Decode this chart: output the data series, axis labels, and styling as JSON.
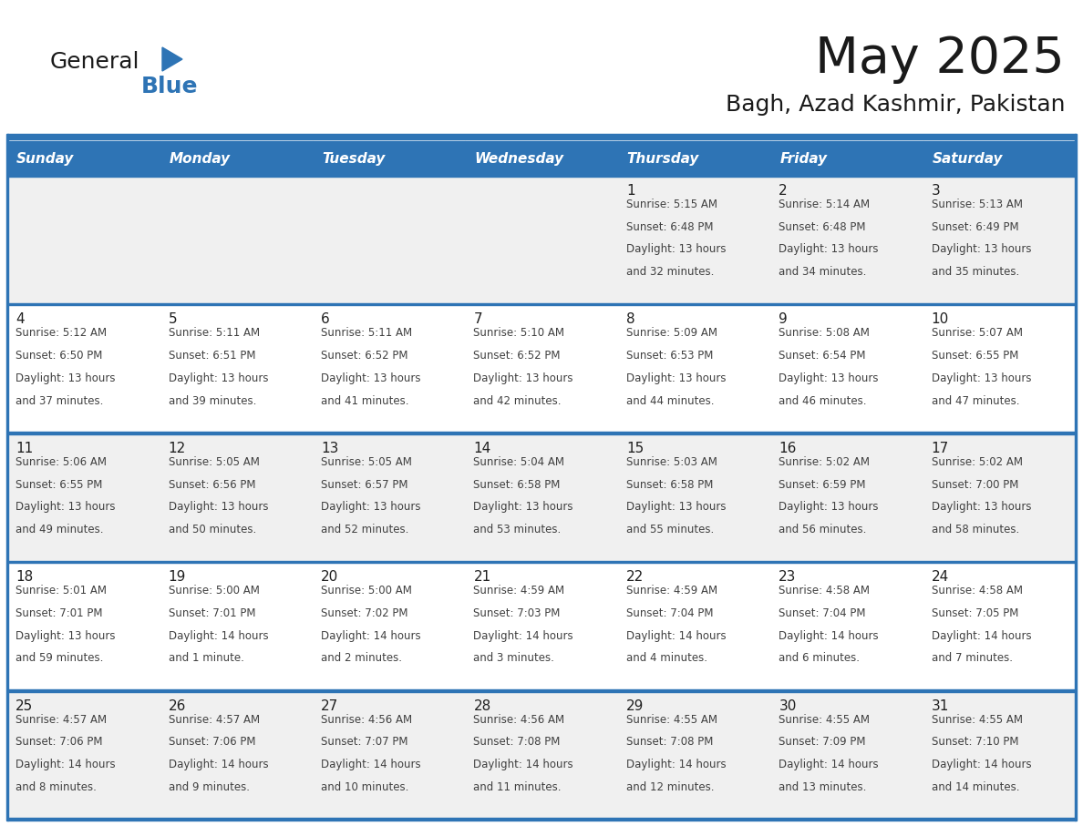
{
  "title": "May 2025",
  "subtitle": "Bagh, Azad Kashmir, Pakistan",
  "days_of_week": [
    "Sunday",
    "Monday",
    "Tuesday",
    "Wednesday",
    "Thursday",
    "Friday",
    "Saturday"
  ],
  "header_bg": "#2E74B5",
  "header_text_color": "#FFFFFF",
  "row_bg_odd": "#F0F0F0",
  "row_bg_even": "#FFFFFF",
  "border_color": "#2E74B5",
  "day_number_color": "#1F1F1F",
  "cell_text_color": "#404040",
  "logo_general_color": "#1A1A1A",
  "logo_blue_color": "#2E74B5",
  "title_color": "#1A1A1A",
  "subtitle_color": "#1A1A1A",
  "calendar": [
    [
      null,
      null,
      null,
      null,
      {
        "day": 1,
        "sunrise": "5:15 AM",
        "sunset": "6:48 PM",
        "daylight": "13 hours and 32 minutes"
      },
      {
        "day": 2,
        "sunrise": "5:14 AM",
        "sunset": "6:48 PM",
        "daylight": "13 hours and 34 minutes"
      },
      {
        "day": 3,
        "sunrise": "5:13 AM",
        "sunset": "6:49 PM",
        "daylight": "13 hours and 35 minutes"
      }
    ],
    [
      {
        "day": 4,
        "sunrise": "5:12 AM",
        "sunset": "6:50 PM",
        "daylight": "13 hours and 37 minutes"
      },
      {
        "day": 5,
        "sunrise": "5:11 AM",
        "sunset": "6:51 PM",
        "daylight": "13 hours and 39 minutes"
      },
      {
        "day": 6,
        "sunrise": "5:11 AM",
        "sunset": "6:52 PM",
        "daylight": "13 hours and 41 minutes"
      },
      {
        "day": 7,
        "sunrise": "5:10 AM",
        "sunset": "6:52 PM",
        "daylight": "13 hours and 42 minutes"
      },
      {
        "day": 8,
        "sunrise": "5:09 AM",
        "sunset": "6:53 PM",
        "daylight": "13 hours and 44 minutes"
      },
      {
        "day": 9,
        "sunrise": "5:08 AM",
        "sunset": "6:54 PM",
        "daylight": "13 hours and 46 minutes"
      },
      {
        "day": 10,
        "sunrise": "5:07 AM",
        "sunset": "6:55 PM",
        "daylight": "13 hours and 47 minutes"
      }
    ],
    [
      {
        "day": 11,
        "sunrise": "5:06 AM",
        "sunset": "6:55 PM",
        "daylight": "13 hours and 49 minutes"
      },
      {
        "day": 12,
        "sunrise": "5:05 AM",
        "sunset": "6:56 PM",
        "daylight": "13 hours and 50 minutes"
      },
      {
        "day": 13,
        "sunrise": "5:05 AM",
        "sunset": "6:57 PM",
        "daylight": "13 hours and 52 minutes"
      },
      {
        "day": 14,
        "sunrise": "5:04 AM",
        "sunset": "6:58 PM",
        "daylight": "13 hours and 53 minutes"
      },
      {
        "day": 15,
        "sunrise": "5:03 AM",
        "sunset": "6:58 PM",
        "daylight": "13 hours and 55 minutes"
      },
      {
        "day": 16,
        "sunrise": "5:02 AM",
        "sunset": "6:59 PM",
        "daylight": "13 hours and 56 minutes"
      },
      {
        "day": 17,
        "sunrise": "5:02 AM",
        "sunset": "7:00 PM",
        "daylight": "13 hours and 58 minutes"
      }
    ],
    [
      {
        "day": 18,
        "sunrise": "5:01 AM",
        "sunset": "7:01 PM",
        "daylight": "13 hours and 59 minutes"
      },
      {
        "day": 19,
        "sunrise": "5:00 AM",
        "sunset": "7:01 PM",
        "daylight": "14 hours and 1 minute"
      },
      {
        "day": 20,
        "sunrise": "5:00 AM",
        "sunset": "7:02 PM",
        "daylight": "14 hours and 2 minutes"
      },
      {
        "day": 21,
        "sunrise": "4:59 AM",
        "sunset": "7:03 PM",
        "daylight": "14 hours and 3 minutes"
      },
      {
        "day": 22,
        "sunrise": "4:59 AM",
        "sunset": "7:04 PM",
        "daylight": "14 hours and 4 minutes"
      },
      {
        "day": 23,
        "sunrise": "4:58 AM",
        "sunset": "7:04 PM",
        "daylight": "14 hours and 6 minutes"
      },
      {
        "day": 24,
        "sunrise": "4:58 AM",
        "sunset": "7:05 PM",
        "daylight": "14 hours and 7 minutes"
      }
    ],
    [
      {
        "day": 25,
        "sunrise": "4:57 AM",
        "sunset": "7:06 PM",
        "daylight": "14 hours and 8 minutes"
      },
      {
        "day": 26,
        "sunrise": "4:57 AM",
        "sunset": "7:06 PM",
        "daylight": "14 hours and 9 minutes"
      },
      {
        "day": 27,
        "sunrise": "4:56 AM",
        "sunset": "7:07 PM",
        "daylight": "14 hours and 10 minutes"
      },
      {
        "day": 28,
        "sunrise": "4:56 AM",
        "sunset": "7:08 PM",
        "daylight": "14 hours and 11 minutes"
      },
      {
        "day": 29,
        "sunrise": "4:55 AM",
        "sunset": "7:08 PM",
        "daylight": "14 hours and 12 minutes"
      },
      {
        "day": 30,
        "sunrise": "4:55 AM",
        "sunset": "7:09 PM",
        "daylight": "14 hours and 13 minutes"
      },
      {
        "day": 31,
        "sunrise": "4:55 AM",
        "sunset": "7:10 PM",
        "daylight": "14 hours and 14 minutes"
      }
    ]
  ]
}
